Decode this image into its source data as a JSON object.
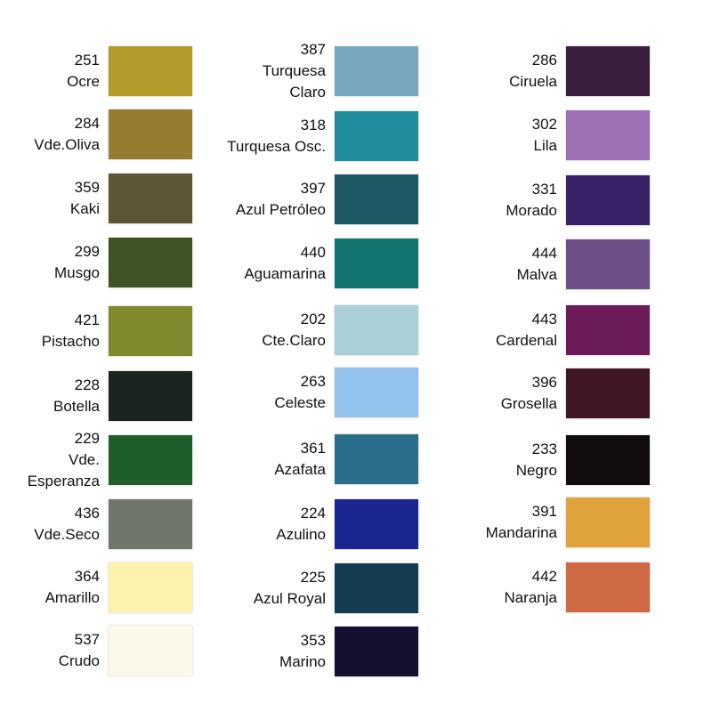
{
  "columns": [
    [
      {
        "code": "251",
        "name": [
          "Ocre"
        ],
        "color": "#b39a2a"
      },
      {
        "code": "284",
        "name": [
          "Vde.Oliva"
        ],
        "color": "#957c2e"
      },
      {
        "code": "359",
        "name": [
          "Kaki"
        ],
        "color": "#5c5634"
      },
      {
        "code": "299",
        "name": [
          "Musgo"
        ],
        "color": "#3f5424"
      },
      {
        "code": "421",
        "name": [
          "Pistacho"
        ],
        "color": "#818a2e"
      },
      {
        "code": "228",
        "name": [
          "Botella"
        ],
        "color": "#1c2420"
      },
      {
        "code": "229",
        "name": [
          "Vde.",
          "Esperanza"
        ],
        "color": "#1f5e2a"
      },
      {
        "code": "436",
        "name": [
          "Vde.Seco"
        ],
        "color": "#71766b"
      },
      {
        "code": "364",
        "name": [
          "Amarillo"
        ],
        "color": "#fdf2ab"
      },
      {
        "code": "537",
        "name": [
          "Crudo"
        ],
        "color": "#fdf9ea"
      }
    ],
    [
      {
        "code": "387",
        "name": [
          "Turquesa",
          "Claro"
        ],
        "color": "#77a8c0"
      },
      {
        "code": "318",
        "name": [
          "Turquesa Osc."
        ],
        "color": "#1f8d9c"
      },
      {
        "code": "397",
        "name": [
          "Azul Petróleo"
        ],
        "color": "#1d5864"
      },
      {
        "code": "440",
        "name": [
          "Aguamarina"
        ],
        "color": "#147470"
      },
      {
        "code": "202",
        "name": [
          "Cte.Claro"
        ],
        "color": "#a9cfd9"
      },
      {
        "code": "263",
        "name": [
          "Celeste"
        ],
        "color": "#93c3ec"
      },
      {
        "code": "361",
        "name": [
          "Azafata"
        ],
        "color": "#2a6e8c"
      },
      {
        "code": "224",
        "name": [
          "Azulino"
        ],
        "color": "#1a2590"
      },
      {
        "code": "225",
        "name": [
          "Azul Royal"
        ],
        "color": "#153d52"
      },
      {
        "code": "353",
        "name": [
          "Marino"
        ],
        "color": "#150f30"
      }
    ],
    [
      {
        "code": "286",
        "name": [
          "Ciruela"
        ],
        "color": "#3a1e3e"
      },
      {
        "code": "302",
        "name": [
          "Lila"
        ],
        "color": "#9d70b4"
      },
      {
        "code": "331",
        "name": [
          "Morado"
        ],
        "color": "#3a2168"
      },
      {
        "code": "444",
        "name": [
          "Malva"
        ],
        "color": "#6c4f86"
      },
      {
        "code": "443",
        "name": [
          "Cardenal"
        ],
        "color": "#6c1c58"
      },
      {
        "code": "396",
        "name": [
          "Grosella"
        ],
        "color": "#401626"
      },
      {
        "code": "233",
        "name": [
          "Negro"
        ],
        "color": "#120c10"
      },
      {
        "code": "391",
        "name": [
          "Mandarina"
        ],
        "color": "#e0a23a"
      },
      {
        "code": "442",
        "name": [
          "Naranja"
        ],
        "color": "#d06a45"
      }
    ]
  ]
}
